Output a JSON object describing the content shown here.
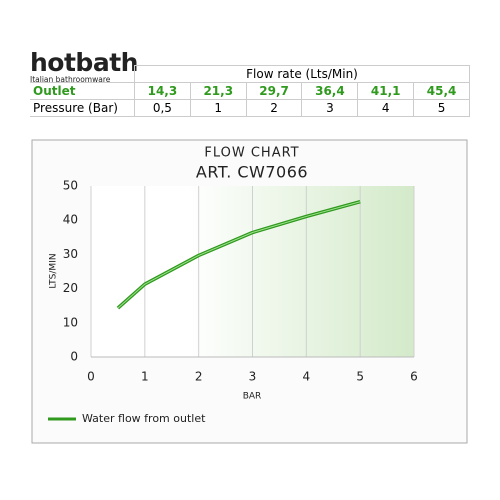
{
  "header": {
    "brand": "hotbath",
    "tagline": "Italian bathroomware"
  },
  "table": {
    "caption": "Flow rate (Lts/Min)",
    "rows": [
      [
        "Outlet",
        "14,3",
        "21,3",
        "29,7",
        "36,4",
        "41,1",
        "45,4"
      ],
      [
        "Pressure (Bar)",
        "0,5",
        "1",
        "2",
        "3",
        "4",
        "5"
      ]
    ]
  },
  "chart_data": {
    "type": "line",
    "title": "FLOW CHART",
    "subtitle": "ART. CW7066",
    "x_label": "BAR",
    "y_label": "LTS/MIN",
    "x": [
      0.5,
      1,
      2,
      3,
      4,
      5
    ],
    "series": [
      {
        "name": "Water flow from outlet",
        "color": "#2f9a1e",
        "values": [
          14.3,
          21.3,
          29.7,
          36.4,
          41.1,
          45.4
        ]
      }
    ],
    "xlim": [
      0,
      6
    ],
    "xticks": [
      0,
      1,
      2,
      3,
      4,
      5,
      6
    ],
    "ylim": [
      0,
      50
    ],
    "yticks": [
      0,
      10,
      20,
      30,
      40,
      50
    ],
    "grid": true,
    "legend": "bottom-left"
  }
}
